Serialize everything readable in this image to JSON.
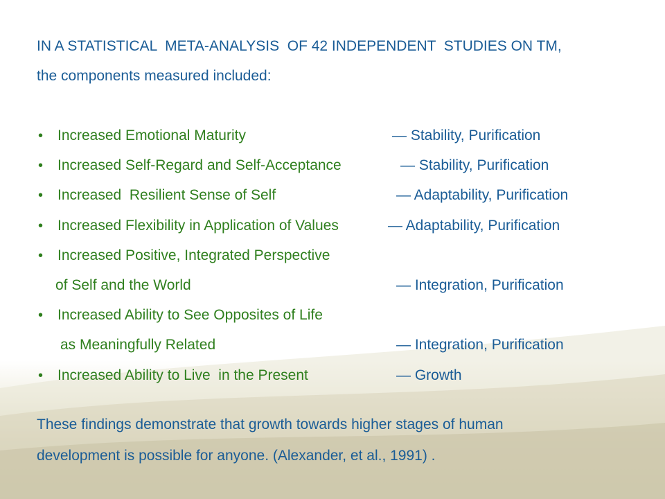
{
  "intro": {
    "line1": "IN A STATISTICAL  META-ANALYSIS  OF 42 INDEPENDENT  STUDIES ON TM,",
    "line2": "the components measured included:"
  },
  "bullet_char": "•",
  "items": [
    {
      "text": "Increased Emotional Maturity",
      "value": "— Stability, Purification"
    },
    {
      "text": "Increased Self-Regard and Self-Acceptance",
      "value": "— Stability, Purification"
    },
    {
      "text": "Increased  Resilient Sense of Self",
      "value": "— Adaptability, Purification"
    },
    {
      "text": "Increased Flexibility in Application of Values",
      "value": "— Adaptability, Purification"
    },
    {
      "text": "Increased Positive, Integrated Perspective",
      "continuation": "of Self and the World",
      "value": "— Integration, Purification"
    },
    {
      "text": "Increased Ability to See Opposites of Life",
      "continuation": "as Meaningfully Related",
      "value": "— Integration, Purification"
    },
    {
      "text": "Increased Ability to Live  in the Present",
      "value": "— Growth"
    }
  ],
  "conclusion": {
    "line1": "These findings demonstrate that growth towards higher stages of human",
    "line2": "development is possible for anyone. (Alexander, et al., 1991) ."
  },
  "colors": {
    "heading_blue": "#1a5c96",
    "item_green": "#2f7f1e",
    "background_bottom": "#c9c4a6"
  }
}
